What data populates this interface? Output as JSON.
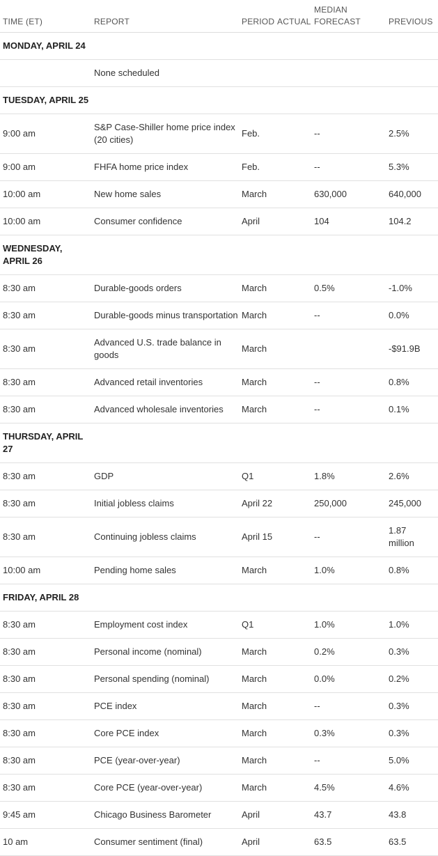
{
  "headers": {
    "time": "TIME (ET)",
    "report": "REPORT",
    "period": "PERIOD",
    "actual": "ACTUAL",
    "forecast": "MEDIAN FORECAST",
    "previous": "PREVIOUS"
  },
  "days": [
    {
      "label": "MONDAY, APRIL 24",
      "rows": [
        {
          "time": "",
          "report": "None scheduled",
          "period": "",
          "actual": "",
          "forecast": "",
          "previous": ""
        }
      ]
    },
    {
      "label": "TUESDAY, APRIL 25",
      "rows": [
        {
          "time": "9:00 am",
          "report": "S&P Case-Shiller home price index (20 cities)",
          "period": "Feb.",
          "actual": "",
          "forecast": "--",
          "previous": "2.5%"
        },
        {
          "time": "9:00 am",
          "report": "FHFA home price index",
          "period": "Feb.",
          "actual": "",
          "forecast": "--",
          "previous": "5.3%"
        },
        {
          "time": "10:00 am",
          "report": "New home sales",
          "period": "March",
          "actual": "",
          "forecast": "630,000",
          "previous": "640,000"
        },
        {
          "time": "10:00 am",
          "report": "Consumer confidence",
          "period": "April",
          "actual": "",
          "forecast": "104",
          "previous": "104.2"
        }
      ]
    },
    {
      "label": "WEDNESDAY, APRIL 26",
      "rows": [
        {
          "time": "8:30 am",
          "report": "Durable-goods orders",
          "period": "March",
          "actual": "",
          "forecast": "0.5%",
          "previous": "-1.0%"
        },
        {
          "time": "8:30 am",
          "report": "Durable-goods minus transportation",
          "period": "March",
          "actual": "",
          "forecast": "--",
          "previous": "0.0%"
        },
        {
          "time": "8:30 am",
          "report": "Advanced U.S. trade balance in goods",
          "period": "March",
          "actual": "",
          "forecast": "",
          "previous": "-$91.9B"
        },
        {
          "time": "8:30 am",
          "report": "Advanced retail inventories",
          "period": "March",
          "actual": "",
          "forecast": "--",
          "previous": "0.8%"
        },
        {
          "time": "8:30 am",
          "report": "Advanced wholesale inventories",
          "period": "March",
          "actual": "",
          "forecast": "--",
          "previous": "0.1%"
        }
      ]
    },
    {
      "label": "THURSDAY, APRIL 27",
      "rows": [
        {
          "time": "8:30 am",
          "report": "GDP",
          "period": "Q1",
          "actual": "",
          "forecast": "1.8%",
          "previous": "2.6%"
        },
        {
          "time": "8:30 am",
          "report": "Initial jobless claims",
          "period": "April 22",
          "actual": "",
          "forecast": "250,000",
          "previous": "245,000"
        },
        {
          "time": "8:30 am",
          "report": "Continuing jobless claims",
          "period": "April 15",
          "actual": "",
          "forecast": "--",
          "previous": "1.87 million"
        },
        {
          "time": "10:00 am",
          "report": "Pending home sales",
          "period": "March",
          "actual": "",
          "forecast": "1.0%",
          "previous": "0.8%"
        }
      ]
    },
    {
      "label": "FRIDAY, APRIL 28",
      "rows": [
        {
          "time": "8:30 am",
          "report": "Employment cost index",
          "period": "Q1",
          "actual": "",
          "forecast": "1.0%",
          "previous": "1.0%"
        },
        {
          "time": "8:30 am",
          "report": "Personal income (nominal)",
          "period": "March",
          "actual": "",
          "forecast": "0.2%",
          "previous": "0.3%"
        },
        {
          "time": "8:30 am",
          "report": "Personal spending (nominal)",
          "period": "March",
          "actual": "",
          "forecast": "0.0%",
          "previous": "0.2%"
        },
        {
          "time": "8:30 am",
          "report": "PCE index",
          "period": "March",
          "actual": "",
          "forecast": "--",
          "previous": "0.3%"
        },
        {
          "time": "8:30 am",
          "report": "Core PCE index",
          "period": "March",
          "actual": "",
          "forecast": "0.3%",
          "previous": "0.3%"
        },
        {
          "time": "8:30 am",
          "report": "PCE (year-over-year)",
          "period": "March",
          "actual": "",
          "forecast": "--",
          "previous": "5.0%"
        },
        {
          "time": "8:30 am",
          "report": "Core PCE (year-over-year)",
          "period": "March",
          "actual": "",
          "forecast": "4.5%",
          "previous": "4.6%"
        },
        {
          "time": "9:45 am",
          "report": "Chicago Business Barometer",
          "period": "April",
          "actual": "",
          "forecast": "43.7",
          "previous": "43.8"
        },
        {
          "time": "10 am",
          "report": "Consumer sentiment (final)",
          "period": "April",
          "actual": "",
          "forecast": "63.5",
          "previous": "63.5"
        }
      ]
    }
  ]
}
